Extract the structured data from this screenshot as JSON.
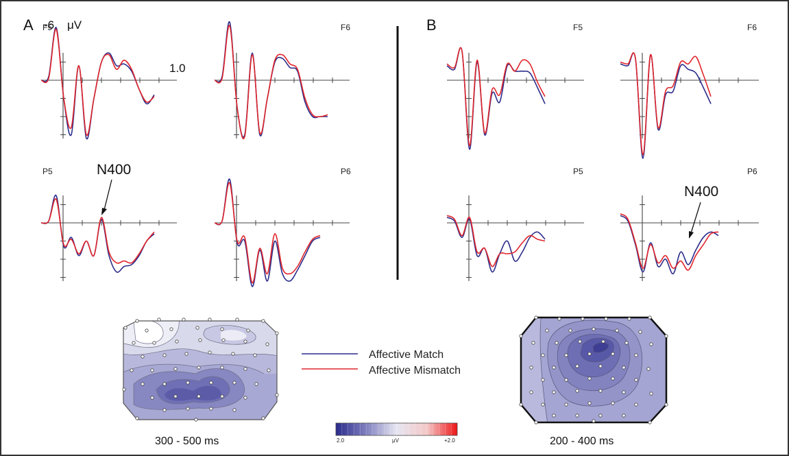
{
  "chart_data": {
    "type": "line",
    "y_unit": "μV",
    "y_tick_label": "-6",
    "x_tick_label": "1.0",
    "orientation": "negative up",
    "colors": {
      "match": "#2c2c8a",
      "mismatch": "#e0252b"
    },
    "legend": [
      "Affective Match",
      "Affective Mismatch"
    ],
    "panels": [
      {
        "letter": "A",
        "window": "300 - 500 ms",
        "annotation": {
          "text": "N400",
          "channel": "P5"
        },
        "channels": [
          {
            "name": "F5",
            "match": [
              0,
              0.2,
              2.9,
              -1,
              -3,
              0.8,
              -3.2,
              -1,
              1,
              1.5,
              0.8,
              0.9,
              0.5,
              -0.5,
              -1.3,
              -0.8
            ],
            "mismatch": [
              0,
              0.1,
              2.8,
              -1,
              -2.6,
              0.8,
              -3,
              -1,
              1,
              1.4,
              0.6,
              1.1,
              0.6,
              -0.5,
              -1.2,
              -0.9
            ]
          },
          {
            "name": "F6",
            "match": [
              0,
              0.2,
              3.2,
              -1.5,
              -3,
              1.5,
              -3,
              -1,
              1,
              1.2,
              0.7,
              0.5,
              -1.2,
              -2,
              -2,
              -2
            ],
            "mismatch": [
              0,
              0.1,
              3,
              -1.5,
              -3.1,
              1.4,
              -2.9,
              -1,
              1.1,
              1.4,
              0.9,
              0.6,
              -1,
              -1.9,
              -2,
              -1.9
            ]
          },
          {
            "name": "P5",
            "match": [
              0,
              0.1,
              1.5,
              -1.3,
              -0.8,
              -1.8,
              -1,
              -1.8,
              0.2,
              -1.8,
              -2.7,
              -2.4,
              -2.3,
              -1.8,
              -1,
              -0.6
            ],
            "mismatch": [
              0,
              0.1,
              1.3,
              -1.2,
              -0.9,
              -1.7,
              -1,
              -1.8,
              0.3,
              -1.6,
              -2.2,
              -2.1,
              -2.2,
              -1.7,
              -1,
              -0.5
            ]
          },
          {
            "name": "P6",
            "match": [
              0,
              0.1,
              2.4,
              -1.1,
              -1,
              -3.5,
              -1.5,
              -3.2,
              -1,
              -2.8,
              -3.2,
              -2.6,
              -1.8,
              -1,
              -0.8
            ],
            "mismatch": [
              0,
              0.1,
              2.2,
              -1,
              -0.8,
              -3.3,
              -1.4,
              -2.8,
              -0.6,
              -2.5,
              -2.8,
              -2.4,
              -1.6,
              -0.9,
              -0.7
            ]
          }
        ]
      },
      {
        "letter": "B",
        "window": "200 - 400 ms",
        "annotation": {
          "text": "N400",
          "channel": "P6"
        },
        "channels": [
          {
            "name": "F5",
            "match": [
              0.8,
              0.6,
              1.6,
              -3.8,
              1,
              -3,
              -0.7,
              -1.2,
              0.8,
              0.5,
              0.5,
              0.4,
              -0.4,
              -1.3
            ],
            "mismatch": [
              0.9,
              0.7,
              1.6,
              -3.6,
              1.1,
              -2.9,
              -0.5,
              -0.8,
              0.9,
              0.5,
              1.1,
              0.9,
              -0.1,
              -0.9
            ]
          },
          {
            "name": "F6",
            "match": [
              0.9,
              0.8,
              1.2,
              -4.3,
              1.4,
              -2.7,
              -0.8,
              -0.6,
              0.8,
              0.6,
              0.4,
              -0.4,
              -1.3
            ],
            "mismatch": [
              1,
              0.9,
              1.2,
              -4.1,
              1.4,
              -2.6,
              -0.6,
              -0.3,
              1,
              0.9,
              1.3,
              0.3,
              -0.9
            ]
          },
          {
            "name": "P5",
            "match": [
              0.3,
              0.1,
              -0.8,
              0.2,
              -1.8,
              -1.4,
              -2.7,
              -1.7,
              -1,
              -2.1,
              -1.6,
              -0.8,
              -0.5,
              -0.9
            ],
            "mismatch": [
              0.4,
              0.2,
              -0.7,
              0.3,
              -1.6,
              -1.4,
              -2.4,
              -1.7,
              -1.7,
              -1.6,
              -1.1,
              -0.7,
              -0.9,
              -1
            ]
          },
          {
            "name": "P6",
            "match": [
              0.4,
              0.1,
              -1.2,
              -2.7,
              -1.1,
              -2.4,
              -2,
              -2.8,
              -1.6,
              -2.3,
              -1.5,
              -0.8,
              -0.5,
              -0.7
            ],
            "mismatch": [
              0.5,
              0.2,
              -1.1,
              -2.5,
              -1.2,
              -2.2,
              -1.8,
              -2.5,
              -2.1,
              -2.6,
              -1.8,
              -1.2,
              -0.6,
              -0.5
            ]
          }
        ]
      }
    ],
    "colorbar": {
      "min_label": "2.0",
      "mid_label": "μV",
      "max_label": "+2.0",
      "stops": [
        "#2a2a8c",
        "#8080c0",
        "#e6e6f2",
        "#f4c8c8",
        "#ee1515"
      ]
    }
  }
}
